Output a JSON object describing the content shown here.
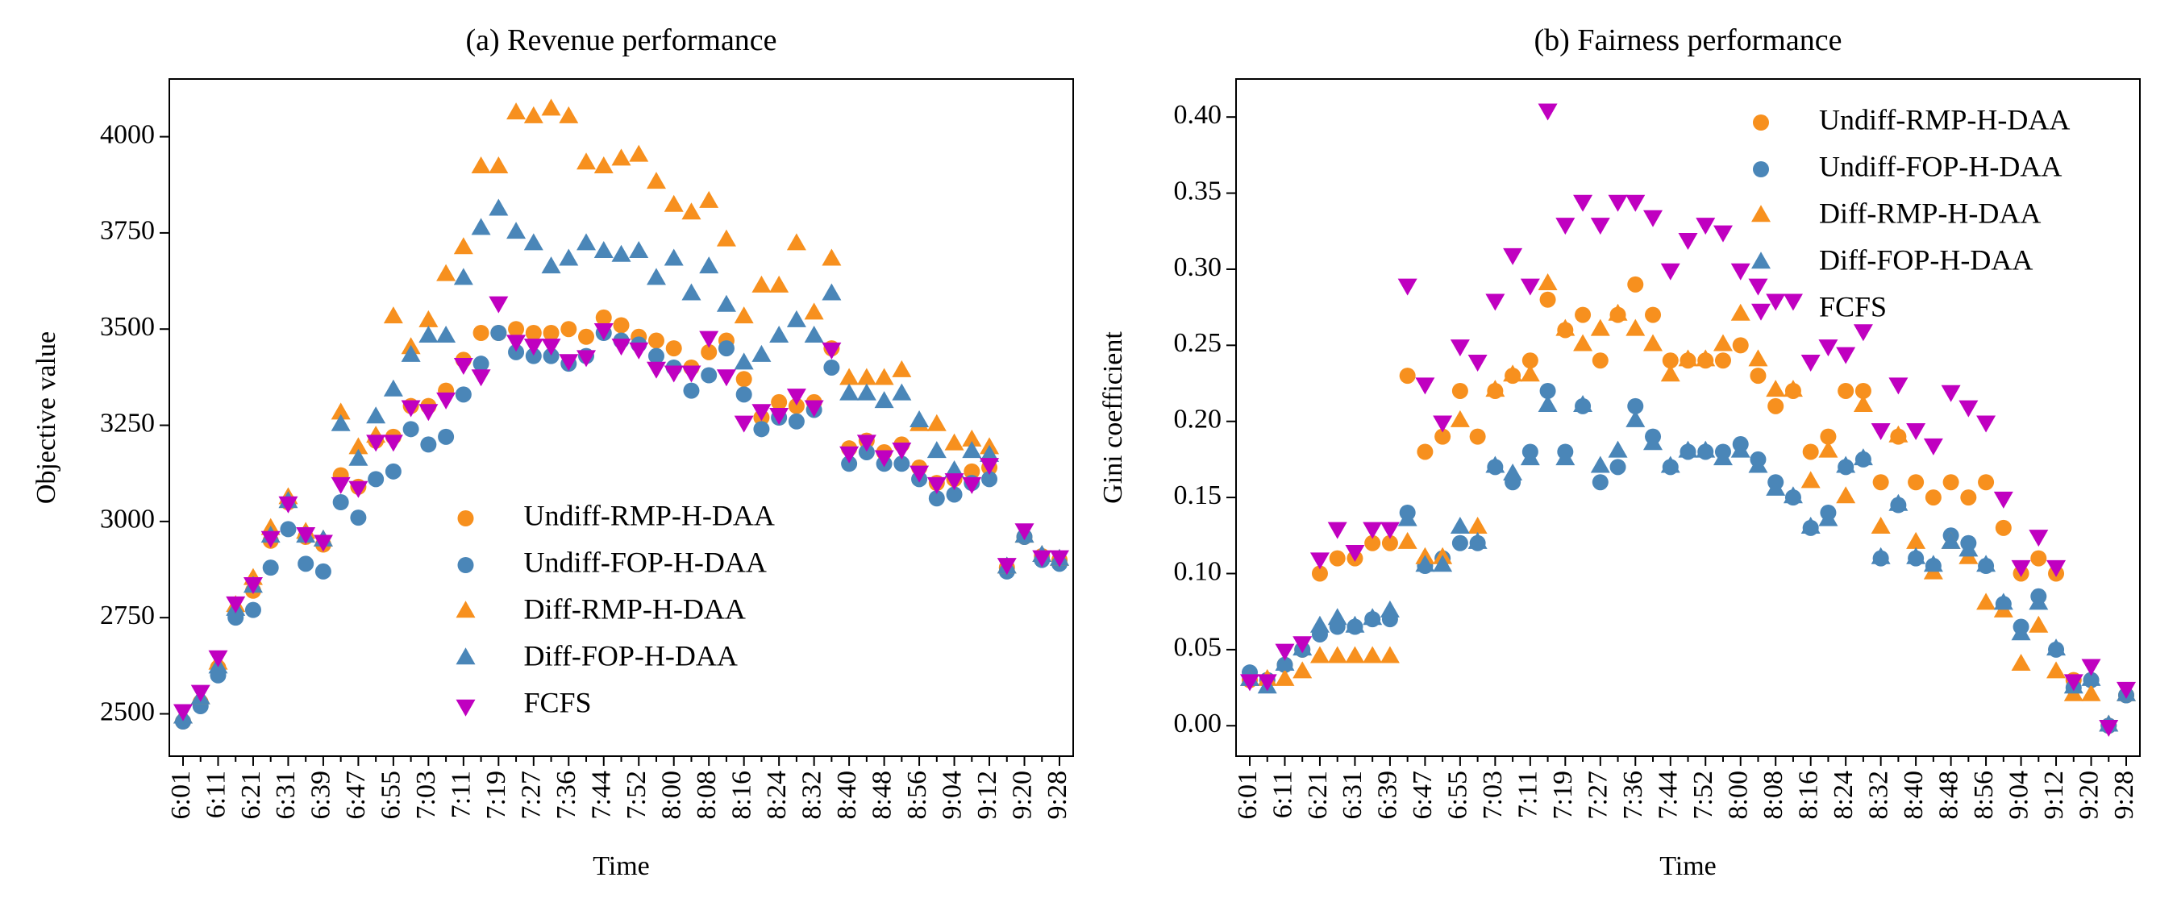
{
  "chart_data": [
    {
      "type": "scatter",
      "title": "(a) Revenue performance",
      "xlabel": "Time",
      "ylabel": "Objective value",
      "categories": [
        "6:01",
        null,
        "6:11",
        null,
        "6:21",
        null,
        "6:31",
        null,
        "6:39",
        null,
        "6:47",
        null,
        "6:55",
        null,
        "7:03",
        null,
        "7:11",
        null,
        "7:19",
        null,
        "7:27",
        null,
        "7:36",
        null,
        "7:44",
        null,
        "7:52",
        null,
        "8:00",
        null,
        "8:08",
        null,
        "8:16",
        null,
        "8:24",
        null,
        "8:32",
        null,
        "8:40",
        null,
        "8:48",
        null,
        "8:56",
        null,
        "9:04",
        null,
        "9:12",
        null,
        "9:20",
        null,
        "9:28"
      ],
      "ylim": [
        2390,
        4150
      ],
      "yticks": [
        2500,
        2750,
        3000,
        3250,
        3500,
        3750,
        4000
      ],
      "legend": "lower center",
      "series": [
        {
          "name": "Undiff-RMP-H-DAA",
          "color": "#f7901e",
          "marker": "circle",
          "values": [
            2480,
            2530,
            2620,
            2760,
            2820,
            2950,
            3050,
            2960,
            2940,
            3120,
            3090,
            3210,
            3220,
            3300,
            3300,
            3340,
            3420,
            3490,
            3490,
            3500,
            3490,
            3490,
            3500,
            3480,
            3530,
            3510,
            3480,
            3470,
            3450,
            3400,
            3440,
            3470,
            3370,
            3270,
            3310,
            3300,
            3310,
            3450,
            3190,
            3210,
            3180,
            3200,
            3140,
            3100,
            3110,
            3130,
            3140,
            2880,
            2960,
            2910,
            2900
          ]
        },
        {
          "name": "Undiff-FOP-H-DAA",
          "color": "#4a86b8",
          "marker": "circle",
          "values": [
            2480,
            2520,
            2600,
            2750,
            2770,
            2880,
            2980,
            2890,
            2870,
            3050,
            3010,
            3110,
            3130,
            3240,
            3200,
            3220,
            3330,
            3410,
            3490,
            3440,
            3430,
            3430,
            3410,
            3430,
            3490,
            3470,
            3460,
            3430,
            3400,
            3340,
            3380,
            3450,
            3330,
            3240,
            3270,
            3260,
            3290,
            3400,
            3150,
            3180,
            3150,
            3150,
            3110,
            3060,
            3070,
            3100,
            3110,
            2870,
            2960,
            2900,
            2890
          ]
        },
        {
          "name": "Diff-RMP-H-DAA",
          "color": "#f7901e",
          "marker": "triangle-up",
          "values": [
            2490,
            2540,
            2630,
            2780,
            2850,
            2980,
            3060,
            2970,
            2950,
            3280,
            3190,
            3220,
            3530,
            3450,
            3520,
            3640,
            3710,
            3920,
            3920,
            4060,
            4050,
            4070,
            4050,
            3930,
            3920,
            3940,
            3950,
            3880,
            3820,
            3800,
            3830,
            3730,
            3530,
            3610,
            3610,
            3720,
            3540,
            3680,
            3370,
            3370,
            3370,
            3390,
            3250,
            3250,
            3200,
            3210,
            3190,
            2880,
            2960,
            2910,
            2900
          ]
        },
        {
          "name": "Diff-FOP-H-DAA",
          "color": "#4a86b8",
          "marker": "triangle-up",
          "values": [
            2490,
            2540,
            2620,
            2770,
            2830,
            2960,
            3050,
            2960,
            2950,
            3250,
            3160,
            3270,
            3340,
            3430,
            3480,
            3480,
            3630,
            3760,
            3810,
            3750,
            3720,
            3660,
            3680,
            3720,
            3700,
            3690,
            3700,
            3630,
            3680,
            3590,
            3660,
            3560,
            3410,
            3430,
            3480,
            3520,
            3480,
            3590,
            3330,
            3330,
            3310,
            3330,
            3260,
            3180,
            3130,
            3180,
            3170,
            2880,
            2960,
            2910,
            2900
          ]
        },
        {
          "name": "FCFS",
          "color": "#c000c0",
          "marker": "triangle-down",
          "values": [
            2510,
            2560,
            2650,
            2790,
            2840,
            2960,
            3050,
            2970,
            2950,
            3100,
            3090,
            3210,
            3210,
            3300,
            3290,
            3320,
            3410,
            3380,
            3570,
            3470,
            3460,
            3460,
            3420,
            3430,
            3500,
            3460,
            3450,
            3400,
            3390,
            3390,
            3480,
            3380,
            3260,
            3290,
            3280,
            3330,
            3300,
            3450,
            3180,
            3210,
            3170,
            3190,
            3130,
            3100,
            3110,
            3100,
            3150,
            2890,
            2980,
            2910,
            2910
          ]
        }
      ]
    },
    {
      "type": "scatter",
      "title": "(b) Fairness performance",
      "xlabel": "Time",
      "ylabel": "Gini coefficient",
      "categories": [
        "6:01",
        null,
        "6:11",
        null,
        "6:21",
        null,
        "6:31",
        null,
        "6:39",
        null,
        "6:47",
        null,
        "6:55",
        null,
        "7:03",
        null,
        "7:11",
        null,
        "7:19",
        null,
        "7:27",
        null,
        "7:36",
        null,
        "7:44",
        null,
        "7:52",
        null,
        "8:00",
        null,
        "8:08",
        null,
        "8:16",
        null,
        "8:24",
        null,
        "8:32",
        null,
        "8:40",
        null,
        "8:48",
        null,
        "8:56",
        null,
        "9:04",
        null,
        "9:12",
        null,
        "9:20",
        null,
        "9:28"
      ],
      "ylim": [
        -0.02,
        0.425
      ],
      "yticks": [
        {
          "value": 0,
          "label": "0.00"
        },
        0.05,
        {
          "value": 0.1,
          "label": "0.10"
        },
        0.15,
        {
          "value": 0.2,
          "label": "0.20"
        },
        0.25,
        {
          "value": 0.3,
          "label": "0.30"
        },
        0.35,
        {
          "value": 0.4,
          "label": "0.40"
        }
      ],
      "legend": "upper right",
      "series": [
        {
          "name": "Undiff-RMP-H-DAA",
          "color": "#f7901e",
          "marker": "circle",
          "values": [
            0.03,
            0.03,
            0.04,
            0.05,
            0.1,
            0.11,
            0.11,
            0.12,
            0.12,
            0.23,
            0.18,
            0.19,
            0.22,
            0.19,
            0.22,
            0.23,
            0.24,
            0.28,
            0.26,
            0.27,
            0.24,
            0.27,
            0.29,
            0.27,
            0.24,
            0.24,
            0.24,
            0.24,
            0.25,
            0.23,
            0.21,
            0.22,
            0.18,
            0.19,
            0.22,
            0.22,
            0.16,
            0.19,
            0.16,
            0.15,
            0.16,
            0.15,
            0.16,
            0.13,
            0.1,
            0.11,
            0.1,
            0.03,
            0.03,
            0,
            0.02
          ]
        },
        {
          "name": "Undiff-FOP-H-DAA",
          "color": "#4a86b8",
          "marker": "circle",
          "values": [
            0.035,
            0.03,
            0.04,
            0.05,
            0.06,
            0.065,
            0.065,
            0.07,
            0.07,
            0.14,
            0.105,
            0.11,
            0.12,
            0.12,
            0.17,
            0.16,
            0.18,
            0.22,
            0.18,
            0.21,
            0.16,
            0.17,
            0.21,
            0.19,
            0.17,
            0.18,
            0.18,
            0.18,
            0.185,
            0.175,
            0.16,
            0.15,
            0.13,
            0.14,
            0.17,
            0.175,
            0.11,
            0.145,
            0.11,
            0.105,
            0.125,
            0.12,
            0.105,
            0.08,
            0.065,
            0.085,
            0.05,
            0.025,
            0.03,
            0,
            0.02
          ]
        },
        {
          "name": "Diff-RMP-H-DAA",
          "color": "#f7901e",
          "marker": "triangle-up",
          "values": [
            0.03,
            0.03,
            0.03,
            0.035,
            0.045,
            0.045,
            0.045,
            0.045,
            0.045,
            0.12,
            0.11,
            0.11,
            0.2,
            0.13,
            0.22,
            0.23,
            0.23,
            0.29,
            0.26,
            0.25,
            0.26,
            0.27,
            0.26,
            0.25,
            0.23,
            0.24,
            0.24,
            0.25,
            0.27,
            0.24,
            0.22,
            0.22,
            0.16,
            0.18,
            0.15,
            0.21,
            0.13,
            0.19,
            0.12,
            0.1,
            0.12,
            0.11,
            0.08,
            0.075,
            0.04,
            0.065,
            0.035,
            0.02,
            0.02,
            0,
            0.02
          ]
        },
        {
          "name": "Diff-FOP-H-DAA",
          "color": "#4a86b8",
          "marker": "triangle-up",
          "values": [
            0.03,
            0.025,
            0.04,
            0.05,
            0.065,
            0.07,
            0.065,
            0.07,
            0.075,
            0.135,
            0.105,
            0.105,
            0.13,
            0.12,
            0.17,
            0.165,
            0.175,
            0.21,
            0.175,
            0.21,
            0.17,
            0.18,
            0.2,
            0.185,
            0.17,
            0.18,
            0.18,
            0.175,
            0.18,
            0.17,
            0.155,
            0.15,
            0.13,
            0.135,
            0.17,
            0.175,
            0.11,
            0.145,
            0.11,
            0.105,
            0.12,
            0.115,
            0.105,
            0.08,
            0.06,
            0.08,
            0.05,
            0.025,
            0.03,
            0,
            0.02
          ]
        },
        {
          "name": "FCFS",
          "color": "#c000c0",
          "marker": "triangle-down",
          "values": [
            0.03,
            0.03,
            0.05,
            0.055,
            0.11,
            0.13,
            0.115,
            0.13,
            0.13,
            0.29,
            0.225,
            0.2,
            0.25,
            0.24,
            0.28,
            0.31,
            0.29,
            0.405,
            0.33,
            0.345,
            0.33,
            0.345,
            0.345,
            0.335,
            0.3,
            0.32,
            0.33,
            0.325,
            0.3,
            0.29,
            0.28,
            0.28,
            0.24,
            0.25,
            0.245,
            0.26,
            0.195,
            0.225,
            0.195,
            0.185,
            0.22,
            0.21,
            0.2,
            0.15,
            0.105,
            0.125,
            0.105,
            0.03,
            0.04,
            0,
            0.025
          ]
        }
      ]
    }
  ]
}
